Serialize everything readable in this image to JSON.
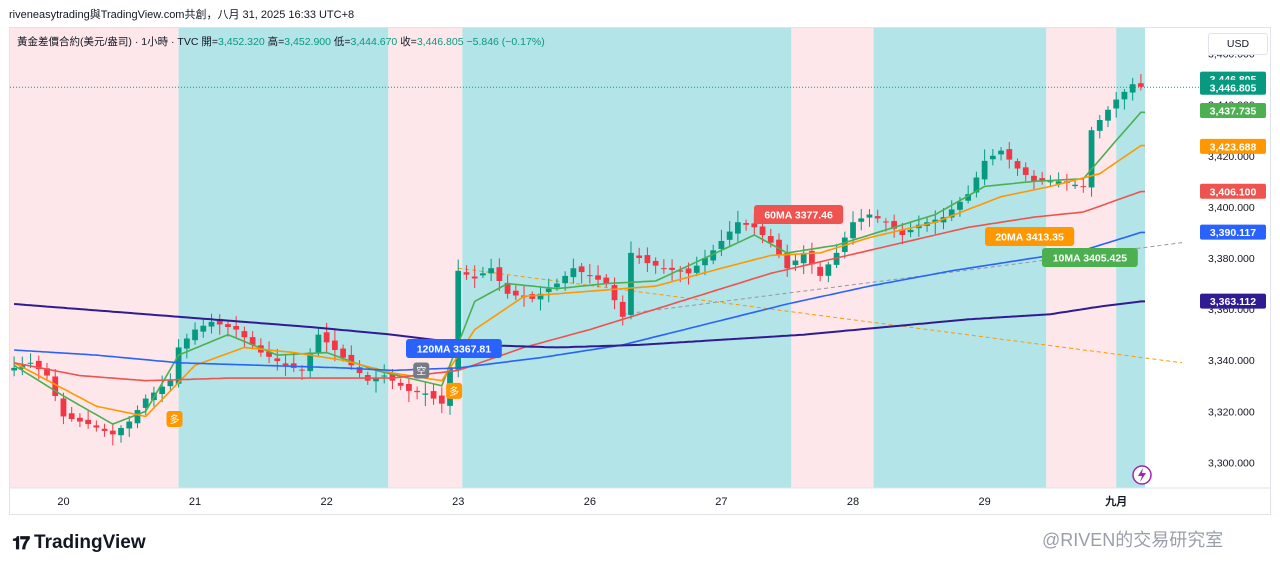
{
  "caption": "riveneasytrading與TradingView.com共創，八月 31, 2025 16:33 UTC+8",
  "legend": {
    "symbol": "黃金差價合約(美元/盎司) · 1小時 · TVC",
    "open_label": "開=",
    "open": "3,452.320",
    "high_label": "高=",
    "high": "3,452.900",
    "low_label": "低=",
    "low": "3,444.670",
    "close_label": "收=",
    "close": "3,446.805",
    "change": "−5.846 (−0.17%)"
  },
  "currency": "USD",
  "brand": "TradingView",
  "watermark": "@RIVEN的交易研究室",
  "colors": {
    "up": "#089981",
    "down": "#f23645",
    "ma10": "#4caf50",
    "ma20": "#ff9800",
    "ma60": "#ef5350",
    "ma120": "#2962ff",
    "ma_long": "#311b92",
    "cyan_zone": "#b2e4e8",
    "pink_zone": "#fde7ea"
  },
  "chart_data": {
    "type": "candlestick",
    "y_axis": {
      "min": 3290,
      "max": 3470,
      "ticks": [
        "3,460.000",
        "3,440.000",
        "3,420.000",
        "3,400.000",
        "3,380.000",
        "3,360.000",
        "3,340.000",
        "3,320.000",
        "3,300.000"
      ],
      "tick_values": [
        3460,
        3440,
        3420,
        3400,
        3380,
        3360,
        3340,
        3320,
        3300
      ]
    },
    "x_axis": {
      "labels": [
        "20",
        "21",
        "22",
        "23",
        "26",
        "27",
        "28",
        "29",
        "九月"
      ],
      "label_index": [
        6,
        22,
        38,
        54,
        70,
        86,
        102,
        118,
        134
      ]
    },
    "bar_count": 138,
    "zones": [
      {
        "from": 0,
        "to": 20.5,
        "color": "pink"
      },
      {
        "from": 20.5,
        "to": 46,
        "color": "cyan"
      },
      {
        "from": 46,
        "to": 55,
        "color": "pink"
      },
      {
        "from": 55,
        "to": 95,
        "color": "cyan"
      },
      {
        "from": 95,
        "to": 105,
        "color": "pink"
      },
      {
        "from": 105,
        "to": 126,
        "color": "cyan"
      },
      {
        "from": 126,
        "to": 134.5,
        "color": "pink"
      },
      {
        "from": 134.5,
        "to": 138.5,
        "color": "cyan"
      }
    ],
    "anchors": [
      [
        0,
        3337
      ],
      [
        2,
        3339
      ],
      [
        4,
        3334
      ],
      [
        6,
        3318
      ],
      [
        9,
        3315
      ],
      [
        12,
        3311
      ],
      [
        14,
        3316
      ],
      [
        16,
        3325
      ],
      [
        19,
        3332
      ],
      [
        20,
        3345
      ],
      [
        22,
        3352
      ],
      [
        24,
        3355
      ],
      [
        27,
        3352
      ],
      [
        30,
        3343
      ],
      [
        33,
        3338
      ],
      [
        35,
        3336
      ],
      [
        37,
        3350
      ],
      [
        39,
        3344
      ],
      [
        41,
        3338
      ],
      [
        43,
        3332
      ],
      [
        45,
        3334
      ],
      [
        48,
        3328
      ],
      [
        50,
        3327
      ],
      [
        52,
        3323
      ],
      [
        53,
        3337
      ],
      [
        54,
        3375
      ],
      [
        56,
        3372
      ],
      [
        58,
        3376
      ],
      [
        60,
        3366
      ],
      [
        63,
        3364
      ],
      [
        66,
        3370
      ],
      [
        68,
        3376
      ],
      [
        70,
        3373
      ],
      [
        72,
        3370
      ],
      [
        74,
        3357
      ],
      [
        75,
        3382
      ],
      [
        77,
        3378
      ],
      [
        79,
        3376
      ],
      [
        82,
        3374
      ],
      [
        85,
        3383
      ],
      [
        88,
        3394
      ],
      [
        90,
        3392
      ],
      [
        92,
        3386
      ],
      [
        94,
        3376
      ],
      [
        96,
        3382
      ],
      [
        98,
        3373
      ],
      [
        100,
        3382
      ],
      [
        102,
        3394
      ],
      [
        104,
        3397
      ],
      [
        106,
        3394
      ],
      [
        108,
        3389
      ],
      [
        110,
        3393
      ],
      [
        113,
        3396
      ],
      [
        116,
        3405
      ],
      [
        118,
        3418
      ],
      [
        120,
        3422
      ],
      [
        122,
        3415
      ],
      [
        124,
        3410
      ],
      [
        127,
        3410
      ],
      [
        130,
        3408
      ],
      [
        131,
        3430
      ],
      [
        134,
        3442
      ],
      [
        136,
        3448
      ],
      [
        137,
        3447
      ]
    ],
    "last_close": 3446.805,
    "indicators": [
      {
        "name": "10MA",
        "color": "ma10",
        "last": "3,437.735",
        "label": "10MA 3405.425",
        "pts": [
          [
            0,
            3338
          ],
          [
            6,
            3326
          ],
          [
            12,
            3315
          ],
          [
            16,
            3320
          ],
          [
            20,
            3342
          ],
          [
            26,
            3350
          ],
          [
            32,
            3342
          ],
          [
            38,
            3343
          ],
          [
            44,
            3336
          ],
          [
            52,
            3330
          ],
          [
            56,
            3363
          ],
          [
            60,
            3370
          ],
          [
            66,
            3368
          ],
          [
            72,
            3370
          ],
          [
            78,
            3371
          ],
          [
            84,
            3380
          ],
          [
            90,
            3389
          ],
          [
            94,
            3382
          ],
          [
            100,
            3385
          ],
          [
            106,
            3391
          ],
          [
            112,
            3397
          ],
          [
            118,
            3408
          ],
          [
            124,
            3410
          ],
          [
            130,
            3411
          ],
          [
            134,
            3426
          ],
          [
            137,
            3437
          ]
        ]
      },
      {
        "name": "20MA",
        "color": "ma20",
        "last": "3,423.688",
        "label": "20MA 3413.35",
        "pts": [
          [
            0,
            3339
          ],
          [
            10,
            3322
          ],
          [
            16,
            3318
          ],
          [
            22,
            3338
          ],
          [
            28,
            3345
          ],
          [
            34,
            3343
          ],
          [
            40,
            3340
          ],
          [
            46,
            3335
          ],
          [
            52,
            3332
          ],
          [
            56,
            3352
          ],
          [
            62,
            3365
          ],
          [
            70,
            3367
          ],
          [
            78,
            3369
          ],
          [
            86,
            3376
          ],
          [
            92,
            3381
          ],
          [
            98,
            3382
          ],
          [
            104,
            3388
          ],
          [
            112,
            3394
          ],
          [
            120,
            3404
          ],
          [
            126,
            3408
          ],
          [
            132,
            3413
          ],
          [
            137,
            3424
          ]
        ]
      },
      {
        "name": "60MA",
        "color": "ma60",
        "last": "3,406.100",
        "label": "60MA 3377.46",
        "pts": [
          [
            0,
            3339
          ],
          [
            8,
            3334
          ],
          [
            16,
            3332
          ],
          [
            26,
            3333
          ],
          [
            36,
            3333
          ],
          [
            46,
            3333
          ],
          [
            54,
            3336
          ],
          [
            62,
            3345
          ],
          [
            70,
            3352
          ],
          [
            78,
            3360
          ],
          [
            86,
            3368
          ],
          [
            92,
            3374
          ],
          [
            100,
            3380
          ],
          [
            108,
            3386
          ],
          [
            116,
            3392
          ],
          [
            124,
            3396
          ],
          [
            130,
            3398
          ],
          [
            137,
            3406
          ]
        ]
      },
      {
        "name": "120MA",
        "color": "ma120",
        "last": "3,390.117",
        "label": "120MA 3367.81",
        "pts": [
          [
            0,
            3344
          ],
          [
            10,
            3342
          ],
          [
            20,
            3339
          ],
          [
            30,
            3338
          ],
          [
            40,
            3337
          ],
          [
            46,
            3336
          ],
          [
            54,
            3337
          ],
          [
            64,
            3341
          ],
          [
            74,
            3346
          ],
          [
            84,
            3354
          ],
          [
            94,
            3362
          ],
          [
            104,
            3369
          ],
          [
            114,
            3375
          ],
          [
            124,
            3380
          ],
          [
            130,
            3383
          ],
          [
            137,
            3390
          ]
        ]
      },
      {
        "name": "longMA",
        "color": "ma_long",
        "last": "3,363.112",
        "pts": [
          [
            0,
            3362
          ],
          [
            12,
            3359
          ],
          [
            24,
            3356
          ],
          [
            36,
            3353
          ],
          [
            46,
            3350
          ],
          [
            56,
            3346
          ],
          [
            66,
            3345
          ],
          [
            76,
            3346
          ],
          [
            86,
            3348
          ],
          [
            96,
            3350
          ],
          [
            106,
            3353
          ],
          [
            116,
            3356
          ],
          [
            126,
            3358
          ],
          [
            132,
            3361
          ],
          [
            137,
            3363
          ]
        ]
      }
    ],
    "price_tags": [
      {
        "value": "3,446.805",
        "y": 3450,
        "bg": "#089981"
      },
      {
        "value": "3,446.805",
        "y": 3446.805,
        "bg": "#089981"
      },
      {
        "value": "3,437.735",
        "y": 3437.735,
        "bg": "#4caf50"
      },
      {
        "value": "3,423.688",
        "y": 3423.688,
        "bg": "#ff9800"
      },
      {
        "value": "3,406.100",
        "y": 3406.1,
        "bg": "#ef5350"
      },
      {
        "value": "3,390.117",
        "y": 3390.117,
        "bg": "#2962ff"
      },
      {
        "value": "3,363.112",
        "y": 3363.112,
        "bg": "#311b92"
      }
    ],
    "trendlines": [
      {
        "from": [
          54,
          3376
        ],
        "to": [
          142,
          3339
        ],
        "color": "#ff9800",
        "dash": true
      },
      {
        "from": [
          74,
          3358
        ],
        "to": [
          142,
          3386
        ],
        "color": "#9598a1",
        "dash": true
      }
    ],
    "markers": [
      {
        "text": "多",
        "bar": 19.5,
        "y": 3317,
        "color": "#ff9800"
      },
      {
        "text": "多",
        "bar": 53.5,
        "y": 3328,
        "color": "#ff9800"
      },
      {
        "text": "空",
        "bar": 49.5,
        "y": 3336,
        "color": "#787b86"
      }
    ]
  }
}
